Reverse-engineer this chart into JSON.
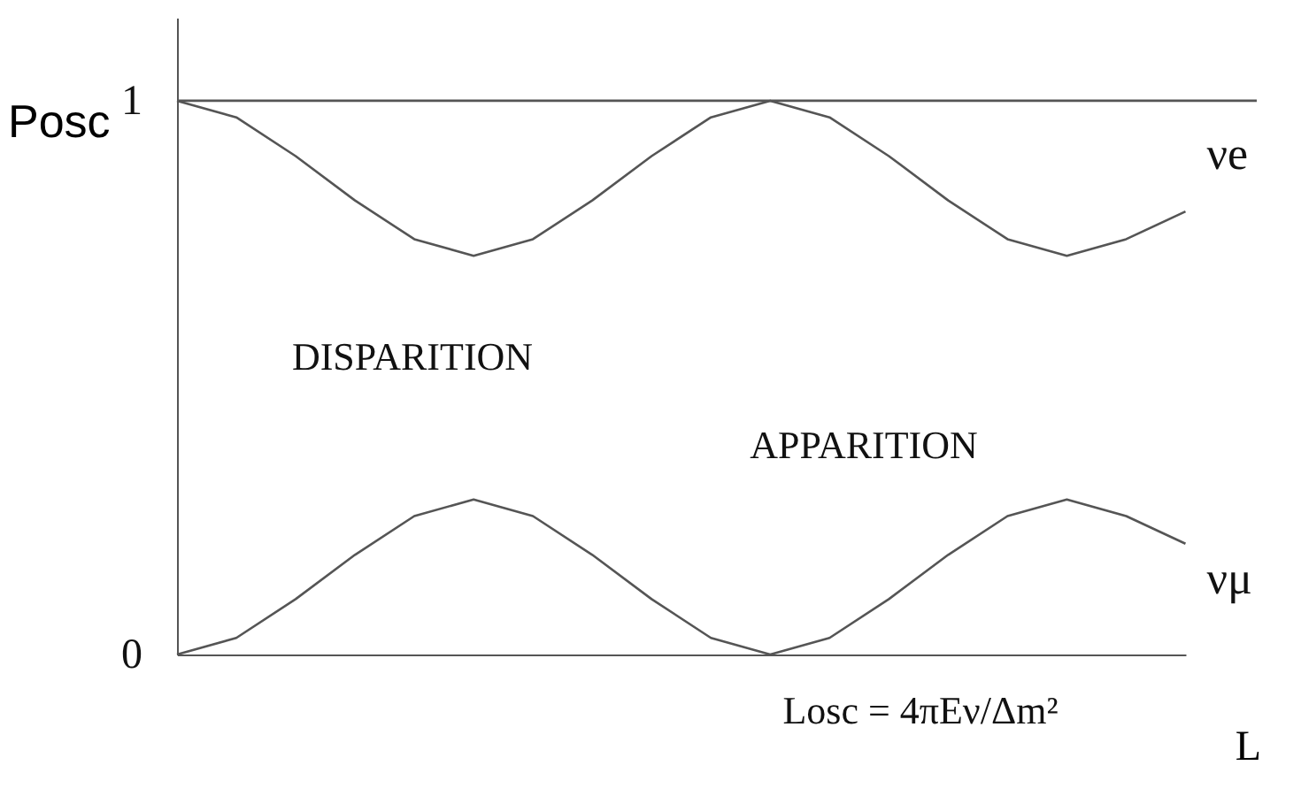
{
  "chart_data": {
    "type": "line",
    "xlabel": "L",
    "ylabel": "Posc",
    "categories": [
      null,
      null,
      null,
      null,
      null,
      null,
      null,
      null,
      null,
      null,
      null,
      null,
      null,
      null,
      null,
      null,
      null,
      null
    ],
    "series": [
      {
        "name": "νe",
        "color": "#555555",
        "values": [
          1,
          0.97,
          0.9,
          0.82,
          0.75,
          0.72,
          0.75,
          0.82,
          0.9,
          0.97,
          1,
          0.97,
          0.9,
          0.82,
          0.75,
          0.72,
          0.75,
          0.8
        ]
      },
      {
        "name": "νμ",
        "color": "#555555",
        "values": [
          0,
          0.03,
          0.1,
          0.18,
          0.25,
          0.28,
          0.25,
          0.18,
          0.1,
          0.03,
          0,
          0.03,
          0.1,
          0.18,
          0.25,
          0.28,
          0.25,
          0.2
        ]
      }
    ],
    "ylim": [
      0,
      1.15
    ],
    "yticks": [
      0,
      1
    ],
    "tick_labels": "y",
    "ref_lines": [
      {
        "axis": "y",
        "value": 1,
        "color": "#555555"
      }
    ],
    "annotations": [
      "DISPARITION",
      "APPARITION",
      "Losc = 4πEν/Δm²"
    ],
    "grid": false,
    "marker": "none",
    "line_style": "solid"
  }
}
